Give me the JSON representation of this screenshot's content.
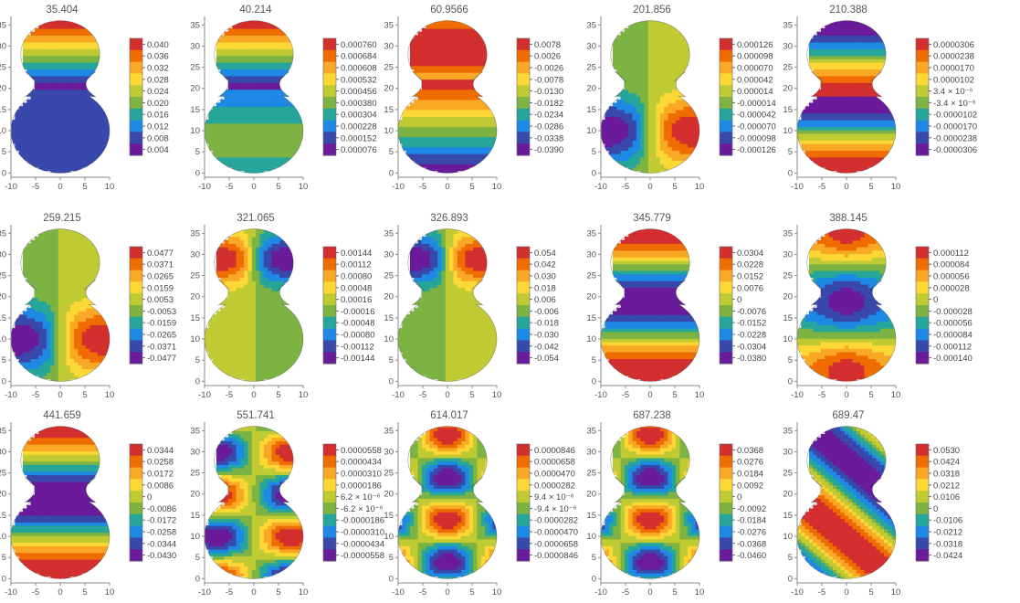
{
  "figure": {
    "xticks": [
      -10,
      -5,
      0,
      5,
      10
    ],
    "yticks": [
      0,
      5,
      10,
      15,
      20,
      25,
      30,
      35
    ],
    "colors": [
      "#6a1b9a",
      "#3949ab",
      "#1e88e5",
      "#26a69a",
      "#7cb342",
      "#c0ca33",
      "#fdd835",
      "#f9a825",
      "#ef6c00",
      "#d32f2f"
    ]
  },
  "chart_data": [
    {
      "type": "heatmap",
      "title": "35.404",
      "legend": [
        "0.040",
        "0.036",
        "0.032",
        "0.028",
        "0.024",
        "0.020",
        "0.016",
        "0.012",
        "0.008",
        "0.004"
      ],
      "xlim": [
        -10,
        10
      ],
      "ylim": [
        0,
        36
      ]
    },
    {
      "type": "heatmap",
      "title": "40.214",
      "legend": [
        "0.000760",
        "0.000684",
        "0.000608",
        "0.000532",
        "0.000456",
        "0.000380",
        "0.000304",
        "0.000228",
        "0.000152",
        "0.000076"
      ],
      "xlim": [
        -10,
        10
      ],
      "ylim": [
        0,
        36
      ]
    },
    {
      "type": "heatmap",
      "title": "60.9566",
      "legend": [
        "0.0078",
        "0.0026",
        "-0.0026",
        "-0.0078",
        "-0.0130",
        "-0.0182",
        "-0.0234",
        "-0.0286",
        "-0.0338",
        "-0.0390"
      ],
      "xlim": [
        -10,
        10
      ],
      "ylim": [
        0,
        36
      ]
    },
    {
      "type": "heatmap",
      "title": "201.856",
      "legend": [
        "0.000126",
        "0.000098",
        "0.000070",
        "0.000042",
        "0.000014",
        "-0.000014",
        "-0.000042",
        "-0.000070",
        "-0.000098",
        "-0.000126"
      ],
      "xlim": [
        -10,
        10
      ],
      "ylim": [
        0,
        36
      ]
    },
    {
      "type": "heatmap",
      "title": "210.388",
      "legend": [
        "0.0000306",
        "0.0000238",
        "0.0000170",
        "0.0000102",
        "3.4 × 10⁻⁶",
        "-3.4 × 10⁻⁶",
        "-0.0000102",
        "-0.0000170",
        "-0.0000238",
        "-0.0000306"
      ],
      "xlim": [
        -10,
        10
      ],
      "ylim": [
        0,
        36
      ]
    },
    {
      "type": "heatmap",
      "title": "259.215",
      "legend": [
        "0.0477",
        "0.0371",
        "0.0265",
        "0.0159",
        "0.0053",
        "-0.0053",
        "-0.0159",
        "-0.0265",
        "-0.0371",
        "-0.0477"
      ],
      "xlim": [
        -10,
        10
      ],
      "ylim": [
        0,
        36
      ]
    },
    {
      "type": "heatmap",
      "title": "321.065",
      "legend": [
        "0.00144",
        "0.00112",
        "0.00080",
        "0.00048",
        "0.00016",
        "-0.00016",
        "-0.00048",
        "-0.00080",
        "-0.00112",
        "-0.00144"
      ],
      "xlim": [
        -10,
        10
      ],
      "ylim": [
        0,
        36
      ]
    },
    {
      "type": "heatmap",
      "title": "326.893",
      "legend": [
        "0.054",
        "0.042",
        "0.030",
        "0.018",
        "0.006",
        "-0.006",
        "-0.018",
        "-0.030",
        "-0.042",
        "-0.054"
      ],
      "xlim": [
        -10,
        10
      ],
      "ylim": [
        0,
        36
      ]
    },
    {
      "type": "heatmap",
      "title": "345.779",
      "legend": [
        "0.0304",
        "0.0228",
        "0.0152",
        "0.0076",
        "0",
        "-0.0076",
        "-0.0152",
        "-0.0228",
        "-0.0304",
        "-0.0380"
      ],
      "xlim": [
        -10,
        10
      ],
      "ylim": [
        0,
        36
      ]
    },
    {
      "type": "heatmap",
      "title": "388.145",
      "legend": [
        "0.000112",
        "0.000084",
        "0.000056",
        "0.000028",
        "0",
        "-0.000028",
        "-0.000056",
        "-0.000084",
        "-0.000112",
        "-0.000140"
      ],
      "xlim": [
        -10,
        10
      ],
      "ylim": [
        0,
        36
      ]
    },
    {
      "type": "heatmap",
      "title": "441.659",
      "legend": [
        "0.0344",
        "0.0258",
        "0.0172",
        "0.0086",
        "0",
        "-0.0086",
        "-0.0172",
        "-0.0258",
        "-0.0344",
        "-0.0430"
      ],
      "xlim": [
        -10,
        10
      ],
      "ylim": [
        0,
        36
      ]
    },
    {
      "type": "heatmap",
      "title": "551.741",
      "legend": [
        "0.0000558",
        "0.0000434",
        "0.0000310",
        "0.0000186",
        "6.2 × 10⁻⁶",
        "-6.2 × 10⁻⁶",
        "-0.0000186",
        "-0.0000310",
        "-0.0000434",
        "-0.0000558"
      ],
      "xlim": [
        -10,
        10
      ],
      "ylim": [
        0,
        36
      ]
    },
    {
      "type": "heatmap",
      "title": "614.017",
      "legend": [
        "0.0000846",
        "0.0000658",
        "0.0000470",
        "0.0000282",
        "9.4 × 10⁻⁶",
        "-9.4 × 10⁻⁶",
        "-0.0000282",
        "-0.0000470",
        "-0.0000658",
        "-0.0000846"
      ],
      "xlim": [
        -10,
        10
      ],
      "ylim": [
        0,
        36
      ]
    },
    {
      "type": "heatmap",
      "title": "687.238",
      "legend": [
        "0.0368",
        "0.0276",
        "0.0184",
        "0.0092",
        "0",
        "-0.0092",
        "-0.0184",
        "-0.0276",
        "-0.0368",
        "-0.0460"
      ],
      "xlim": [
        -10,
        10
      ],
      "ylim": [
        0,
        36
      ]
    },
    {
      "type": "heatmap",
      "title": "689.47",
      "legend": [
        "0.0530",
        "0.0424",
        "0.0318",
        "0.0212",
        "0.0106",
        "0",
        "-0.0106",
        "-0.0212",
        "-0.0318",
        "-0.0424"
      ],
      "xlim": [
        -10,
        10
      ],
      "ylim": [
        0,
        36
      ]
    }
  ]
}
